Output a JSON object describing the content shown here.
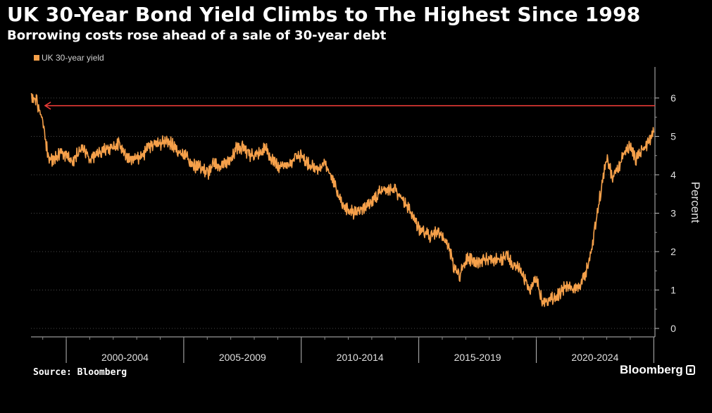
{
  "chart_data": {
    "type": "line",
    "title": "UK 30-Year Bond Yield Climbs to The Highest Since 1998",
    "subtitle": "Borrowing costs rose ahead of a sale of 30-year debt",
    "ylabel": "Percent",
    "ylim": [
      0,
      6.5
    ],
    "xlim": [
      1998.5,
      2025.05
    ],
    "y_ticks": [
      0,
      1,
      2,
      3,
      4,
      5,
      6
    ],
    "x_categories": [
      "2000-2004",
      "2005-2009",
      "2010-2014",
      "2015-2019",
      "2020-2024"
    ],
    "grid": "horizontal dotted",
    "legend_position": "top-left",
    "reference_line": {
      "value": 5.8,
      "color": "#e53935",
      "arrow": "left"
    },
    "series": [
      {
        "name": "UK 30-year yield",
        "color": "#f5a04a",
        "x": [
          1998.5,
          1998.75,
          1999.0,
          1999.25,
          1999.5,
          1999.75,
          2000.0,
          2000.25,
          2000.5,
          2000.75,
          2001.0,
          2001.25,
          2001.5,
          2001.75,
          2002.0,
          2002.25,
          2002.5,
          2002.75,
          2003.0,
          2003.25,
          2003.5,
          2003.75,
          2004.0,
          2004.25,
          2004.5,
          2004.75,
          2005.0,
          2005.25,
          2005.5,
          2005.75,
          2006.0,
          2006.25,
          2006.5,
          2006.75,
          2007.0,
          2007.25,
          2007.5,
          2007.75,
          2008.0,
          2008.25,
          2008.5,
          2008.75,
          2009.0,
          2009.25,
          2009.5,
          2009.75,
          2010.0,
          2010.25,
          2010.5,
          2010.75,
          2011.0,
          2011.25,
          2011.5,
          2011.75,
          2012.0,
          2012.25,
          2012.5,
          2012.75,
          2013.0,
          2013.25,
          2013.5,
          2013.75,
          2014.0,
          2014.25,
          2014.5,
          2014.75,
          2015.0,
          2015.25,
          2015.5,
          2015.75,
          2016.0,
          2016.25,
          2016.5,
          2016.75,
          2017.0,
          2017.25,
          2017.5,
          2017.75,
          2018.0,
          2018.25,
          2018.5,
          2018.75,
          2019.0,
          2019.25,
          2019.5,
          2019.75,
          2020.0,
          2020.25,
          2020.5,
          2020.75,
          2021.0,
          2021.25,
          2021.5,
          2021.75,
          2022.0,
          2022.25,
          2022.5,
          2022.75,
          2023.0,
          2023.25,
          2023.5,
          2023.75,
          2024.0,
          2024.25,
          2024.5,
          2024.75,
          2025.0
        ],
        "y": [
          6.1,
          5.9,
          5.4,
          4.4,
          4.4,
          4.6,
          4.5,
          4.3,
          4.6,
          4.7,
          4.4,
          4.5,
          4.6,
          4.7,
          4.7,
          4.8,
          4.5,
          4.4,
          4.4,
          4.5,
          4.7,
          4.8,
          4.8,
          4.9,
          4.8,
          4.6,
          4.5,
          4.4,
          4.2,
          4.2,
          4.0,
          4.3,
          4.2,
          4.3,
          4.4,
          4.7,
          4.7,
          4.5,
          4.5,
          4.6,
          4.7,
          4.4,
          4.2,
          4.3,
          4.3,
          4.4,
          4.5,
          4.3,
          4.2,
          4.1,
          4.3,
          4.0,
          3.6,
          3.2,
          3.1,
          3.0,
          3.1,
          3.2,
          3.3,
          3.5,
          3.6,
          3.6,
          3.6,
          3.4,
          3.2,
          2.9,
          2.6,
          2.5,
          2.4,
          2.5,
          2.4,
          2.2,
          1.6,
          1.4,
          1.8,
          1.8,
          1.7,
          1.8,
          1.8,
          1.8,
          1.8,
          1.9,
          1.7,
          1.6,
          1.3,
          1.0,
          1.3,
          0.7,
          0.7,
          0.8,
          0.9,
          1.1,
          1.0,
          1.0,
          1.3,
          1.7,
          2.6,
          3.6,
          4.5,
          3.9,
          4.2,
          4.6,
          4.8,
          4.4,
          4.6,
          4.8,
          5.1
        ]
      }
    ]
  },
  "legend": {
    "label": "UK 30-year yield"
  },
  "footer": {
    "source": "Source: Bloomberg",
    "brand": "Bloomberg"
  }
}
